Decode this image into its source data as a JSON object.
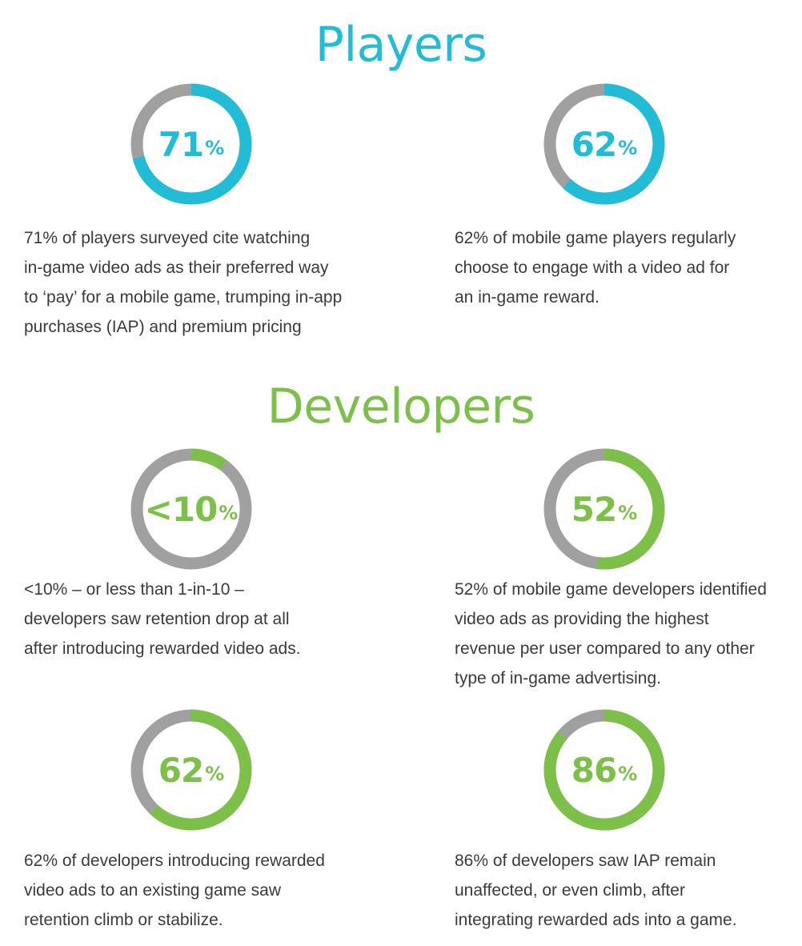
{
  "colors": {
    "players": "#22bcd6",
    "developers": "#7cc04a",
    "track": "#a0a0a0",
    "text": "#3a3a3a"
  },
  "players": {
    "title": "Players",
    "stats": [
      {
        "value_label": "71",
        "percent_sign": "%",
        "lines": [
          "71% of players surveyed cite watching",
          "in-game video ads as their preferred way",
          "to ‘pay’ for a mobile game, trumping in-app",
          "purchases (IAP) and premium pricing"
        ]
      },
      {
        "value_label": "62",
        "percent_sign": "%",
        "lines": [
          "62% of mobile game players regularly",
          "choose to engage with a video ad for",
          "an in-game reward."
        ]
      }
    ]
  },
  "developers": {
    "title": "Developers",
    "stats": [
      {
        "value_label": "<10",
        "percent_sign": "%",
        "lines": [
          "<10% – or less than 1-in-10 –",
          "developers saw retention drop at all",
          "after introducing rewarded video ads."
        ]
      },
      {
        "value_label": "52",
        "percent_sign": "%",
        "lines": [
          "52% of mobile game developers identified",
          "video ads as providing the highest",
          "revenue per user compared to any other",
          "type of in-game advertising."
        ]
      },
      {
        "value_label": "62",
        "percent_sign": "%",
        "lines": [
          "62% of developers introducing rewarded",
          "video ads to an existing game saw",
          "retention climb or stabilize."
        ]
      },
      {
        "value_label": "86",
        "percent_sign": "%",
        "lines": [
          "86% of developers saw IAP remain",
          "unaffected, or even climb, after",
          "integrating rewarded ads into a game."
        ]
      }
    ]
  },
  "chart_data": [
    {
      "type": "pie",
      "group": "Players",
      "values": [
        71,
        29
      ],
      "display": "71%"
    },
    {
      "type": "pie",
      "group": "Players",
      "values": [
        62,
        38
      ],
      "display": "62%"
    },
    {
      "type": "pie",
      "group": "Developers",
      "values": [
        10,
        90
      ],
      "display": "<10%"
    },
    {
      "type": "pie",
      "group": "Developers",
      "values": [
        52,
        48
      ],
      "display": "52%"
    },
    {
      "type": "pie",
      "group": "Developers",
      "values": [
        62,
        38
      ],
      "display": "62%"
    },
    {
      "type": "pie",
      "group": "Developers",
      "values": [
        86,
        14
      ],
      "display": "86%"
    }
  ]
}
